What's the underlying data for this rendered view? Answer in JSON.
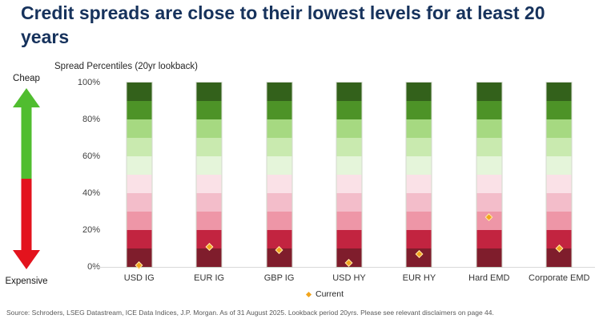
{
  "title": "Credit spreads are close to their lowest levels for at least 20 years",
  "chart": {
    "subtitle": "Spread Percentiles (20yr lookback)",
    "scale": {
      "top_label": "Cheap",
      "bottom_label": "Expensive",
      "up_arrow_color": "#50bd2f",
      "down_arrow_color": "#e3131d"
    },
    "legend": {
      "label": "Current",
      "marker_color": "#f2a51d"
    }
  },
  "chart_data": {
    "type": "bar",
    "subtype": "stacked-decile-percentile-bands-with-current-markers",
    "title": "Spread Percentiles (20yr lookback)",
    "categories": [
      "USD IG",
      "EUR IG",
      "GBP IG",
      "USD HY",
      "EUR HY",
      "Hard EMD",
      "Corporate EMD"
    ],
    "bands_note": "each bar = 10 equal 10%-wide percentile bands spanning 0-100%",
    "band_colors_top_to_bottom": [
      "#33611b",
      "#4d9327",
      "#a6d981",
      "#c9eaaf",
      "#e5f5da",
      "#fae1e7",
      "#f3bdca",
      "#ee96a7",
      "#c22440",
      "#7f1d2c"
    ],
    "series": [
      {
        "name": "Current",
        "marker": "diamond",
        "color": "#f2a51d",
        "values": [
          1,
          11,
          9,
          2,
          7,
          27,
          10
        ],
        "unit": "percentile %"
      }
    ],
    "ylim": [
      0,
      100
    ],
    "yticks_top_to_bottom": [
      "100%",
      "80%",
      "60%",
      "40%",
      "20%",
      "0%"
    ],
    "grid": false,
    "legend_position": "bottom-center",
    "left_axis_annotation": {
      "top": "Cheap",
      "bottom": "Expensive"
    }
  },
  "footer": {
    "source": "Source: Schroders, LSEG Datastream, ICE Data Indices, J.P. Morgan. As of 31 August 2025. Lookback period 20yrs. Please see relevant disclaimers on page 44."
  }
}
